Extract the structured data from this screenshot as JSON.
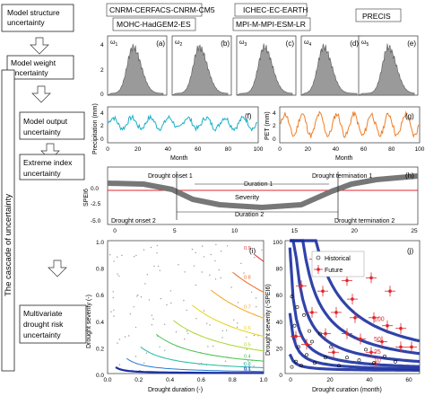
{
  "left_stages": {
    "items": [
      {
        "label_lines": [
          "Model structure",
          "uncertainty"
        ]
      },
      {
        "label_lines": [
          "Model weight",
          "uncertainty"
        ]
      },
      {
        "label_lines": [
          "Model output",
          "uncertainty"
        ]
      },
      {
        "label_lines": [
          "Extreme index",
          "uncertainty"
        ]
      },
      {
        "label_lines": [
          "Multivariate",
          "drought risk",
          "uncertainty"
        ]
      }
    ],
    "cascade_label": "The cascade of uncertainty"
  },
  "models": {
    "labels": [
      "CNRM-CERFACS-CNRM-CM5",
      "ICHEC-EC-EARTH",
      "MOHC-HadGEM2-ES",
      "MPI-M-MPI-ESM-LR",
      "PRECIS"
    ]
  },
  "weights": {
    "y_ticks": [
      "4",
      "2",
      "0"
    ],
    "panels": [
      {
        "omega": "ω",
        "sub": "1",
        "tag": "(a)"
      },
      {
        "omega": "ω",
        "sub": "2",
        "tag": "(b)"
      },
      {
        "omega": "ω",
        "sub": "3",
        "tag": "(c)"
      },
      {
        "omega": "ω",
        "sub": "4",
        "tag": "(d)"
      },
      {
        "omega": "ω",
        "sub": "5",
        "tag": "(e)"
      }
    ]
  },
  "precip": {
    "ylabel": "Precipitation (mm)",
    "xlabel": "Month",
    "tag": "(f)",
    "x_ticks": [
      "0",
      "20",
      "40",
      "60",
      "80",
      "100"
    ],
    "y_ticks": [
      "4",
      "2",
      "0"
    ],
    "color": "#1ab0c8"
  },
  "pet": {
    "ylabel": "PET (mm)",
    "xlabel": "Month",
    "tag": "(g)",
    "x_ticks": [
      "0",
      "20",
      "40",
      "60",
      "80",
      "100"
    ],
    "y_ticks": [
      "4",
      "2",
      "0"
    ],
    "color": "#f07e26"
  },
  "spei": {
    "ylabel": "SPEI6",
    "tag": "(h)",
    "x_ticks": [
      "0",
      "5",
      "10",
      "15",
      "20",
      "25"
    ],
    "y_ticks": [
      "0.0",
      "-2.5",
      "-5.0"
    ],
    "onset1": "Drought onset 1",
    "termination1": "Drought termination 1",
    "duration1": "Duration 1",
    "severity": "Severity",
    "duration2": "Duration 2",
    "onset2": "Drought onset 2",
    "termination2": "Drought termination 2"
  },
  "copula": {
    "tag": "(i)",
    "xlabel": "Drought duration (-)",
    "ylabel": "Drought severity (-)",
    "x_ticks": [
      "0.0",
      "0.2",
      "0.4",
      "0.6",
      "0.8",
      "1.0"
    ],
    "y_ticks": [
      "1.0",
      "0.8",
      "0.6",
      "0.4",
      "0.2",
      "0.0"
    ],
    "contour_labels": [
      "0.9",
      "0.8",
      "0.7",
      "0.6",
      "0.5",
      "0.4",
      "0.3",
      "0.2",
      "0.1"
    ]
  },
  "return_period": {
    "tag": "(j)",
    "xlabel": "Drought curation (month)",
    "ylabel": "Drought severity (-SPEI6)",
    "x_ticks": [
      "0",
      "20",
      "40",
      "60"
    ],
    "y_ticks": [
      "100",
      "80",
      "60",
      "40",
      "20",
      "0"
    ],
    "legend_historical": "Historical",
    "legend_future": "Future",
    "curve_labels": [
      "100",
      "50",
      "25",
      "10",
      "5",
      "2"
    ]
  }
}
